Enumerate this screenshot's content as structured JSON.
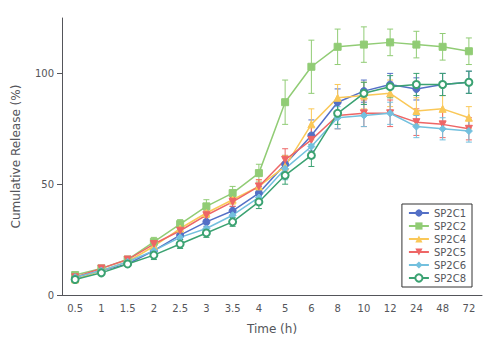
{
  "chart_data": {
    "type": "line",
    "xlabel": "Time (h)",
    "ylabel": "Cumulative Release (%)",
    "categories": [
      "0.5",
      "1",
      "1.5",
      "2",
      "2.5",
      "3",
      "3.5",
      "4",
      "5",
      "6",
      "8",
      "10",
      "12",
      "24",
      "48",
      "72"
    ],
    "series": [
      {
        "name": "SP2C1",
        "marker": "circle",
        "values": [
          8,
          11,
          14,
          20,
          27,
          33,
          38,
          46,
          59,
          72,
          87,
          92,
          95,
          93,
          95,
          96
        ],
        "yerr": [
          1,
          1,
          1,
          2,
          2,
          2,
          2,
          3,
          4,
          7,
          6,
          5,
          5,
          5,
          5,
          5
        ]
      },
      {
        "name": "SP2C2",
        "marker": "square",
        "values": [
          9,
          12,
          16,
          24,
          32,
          40,
          46,
          55,
          87,
          103,
          112,
          113,
          114,
          113,
          112,
          110
        ],
        "yerr": [
          1,
          1,
          1,
          2,
          2,
          3,
          3,
          4,
          10,
          12,
          8,
          8,
          6,
          6,
          6,
          6
        ]
      },
      {
        "name": "SP2C4",
        "marker": "triangle-up",
        "values": [
          7,
          11,
          15,
          22,
          30,
          37,
          43,
          49,
          58,
          77,
          89,
          90,
          91,
          83,
          84,
          80
        ],
        "yerr": [
          1,
          1,
          1,
          2,
          2,
          2,
          2,
          3,
          5,
          7,
          6,
          6,
          6,
          6,
          6,
          5
        ]
      },
      {
        "name": "SP2C5",
        "marker": "triangle-down",
        "values": [
          8,
          12,
          16,
          23,
          29,
          36,
          42,
          49,
          61,
          70,
          81,
          82,
          82,
          78,
          77,
          75
        ],
        "yerr": [
          1,
          1,
          1,
          2,
          2,
          2,
          2,
          3,
          5,
          6,
          6,
          6,
          6,
          6,
          6,
          5
        ]
      },
      {
        "name": "SP2C6",
        "marker": "diamond",
        "values": [
          8,
          11,
          15,
          20,
          26,
          30,
          36,
          44,
          57,
          67,
          80,
          81,
          82,
          76,
          75,
          74
        ],
        "yerr": [
          1,
          1,
          1,
          2,
          2,
          2,
          2,
          3,
          5,
          5,
          5,
          5,
          5,
          5,
          5,
          5
        ]
      },
      {
        "name": "SP2C8",
        "marker": "open-circle",
        "values": [
          7,
          10,
          14,
          18,
          23,
          28,
          33,
          42,
          54,
          63,
          82,
          91,
          94,
          95,
          95,
          96
        ],
        "yerr": [
          1,
          1,
          1,
          2,
          2,
          2,
          2,
          3,
          4,
          5,
          5,
          5,
          5,
          5,
          5,
          5
        ]
      }
    ],
    "ylim": [
      0,
      125
    ],
    "yticks": [
      0,
      50,
      100
    ],
    "grid": false,
    "legend": "lower right"
  }
}
